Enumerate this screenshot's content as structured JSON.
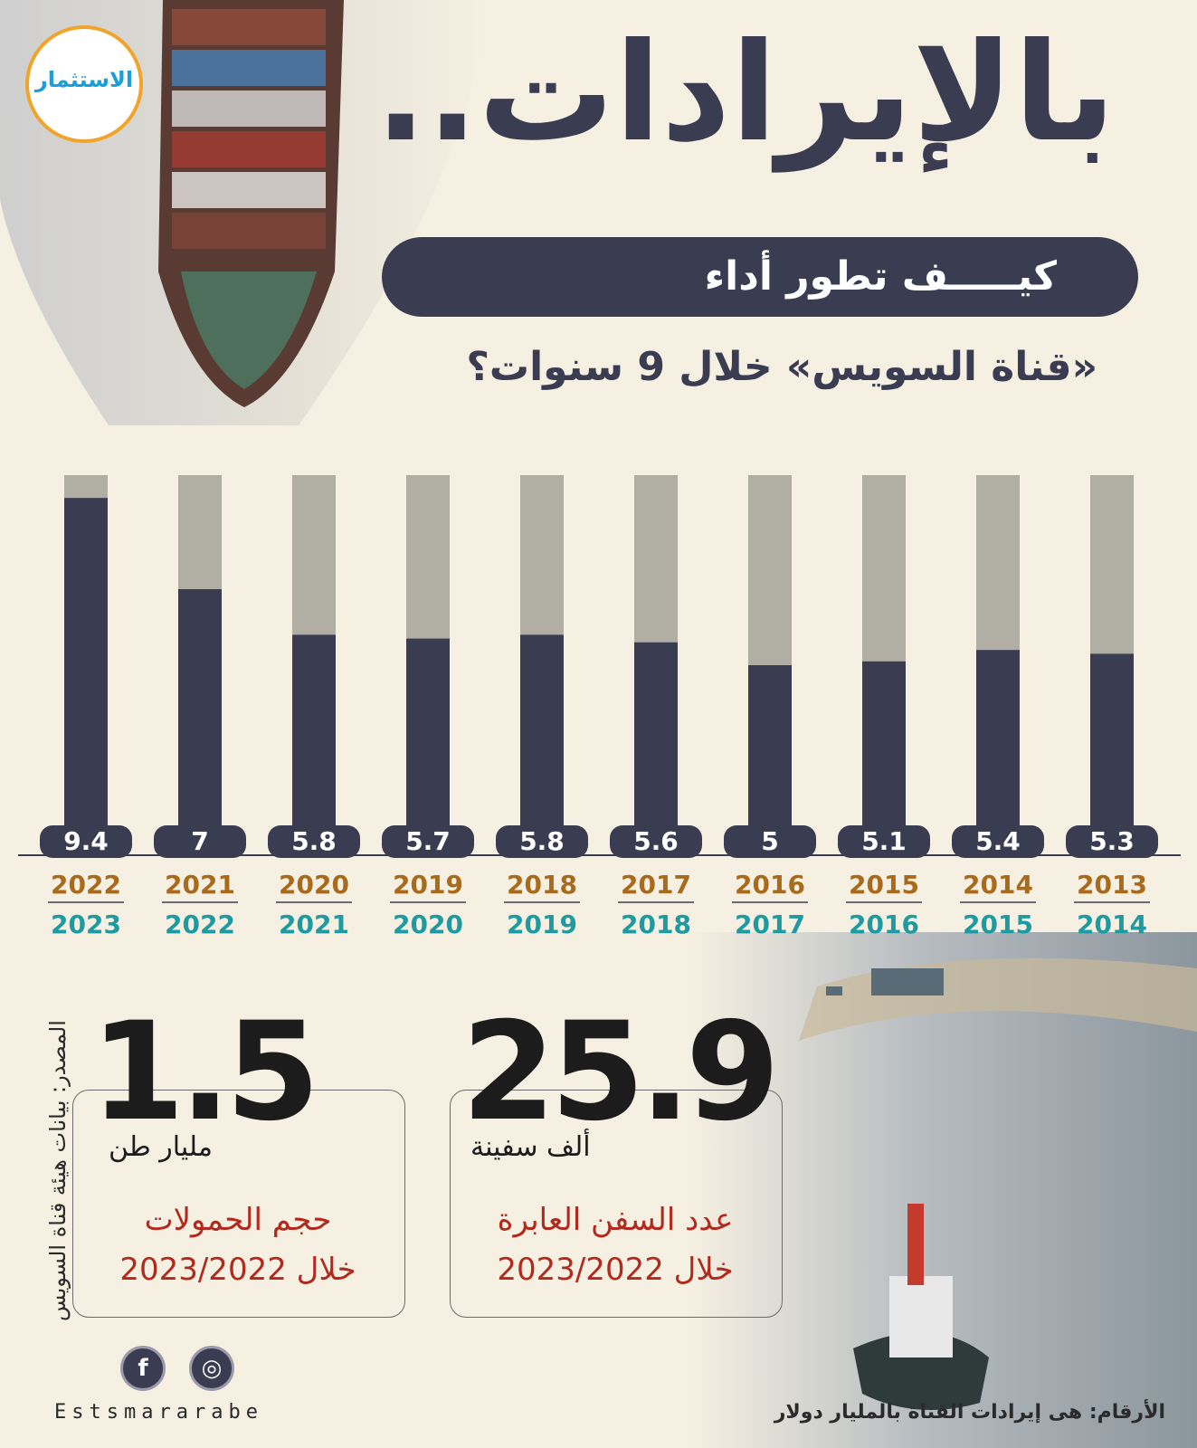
{
  "header": {
    "logo_text": "الاستثمار",
    "headline": "بالإيرادات..",
    "subheadline": "كيـــــف تطور أداء",
    "subtitle": "«قناة السويس» خلال 9 سنوات؟"
  },
  "colors": {
    "background": "#f6f0e2",
    "bar_fill": "#3a3d52",
    "bar_track": "#b1aea3",
    "year_from": "#a86a1c",
    "year_to": "#1f9aa0",
    "stat_label": "#b02a1e"
  },
  "chart_data": {
    "type": "bar",
    "categories": [
      "2013/2014",
      "2014/2015",
      "2015/2016",
      "2016/2017",
      "2017/2018",
      "2018/2019",
      "2019/2020",
      "2020/2021",
      "2021/2022",
      "2022/2023"
    ],
    "year_from": [
      "2013",
      "2014",
      "2015",
      "2016",
      "2017",
      "2018",
      "2019",
      "2020",
      "2021",
      "2022"
    ],
    "year_to": [
      "2014",
      "2015",
      "2016",
      "2017",
      "2018",
      "2019",
      "2020",
      "2021",
      "2022",
      "2023"
    ],
    "values": [
      5.3,
      5.4,
      5.1,
      5,
      5.6,
      5.8,
      5.7,
      5.8,
      7,
      9.4
    ],
    "value_labels": [
      "5.3",
      "5.4",
      "5.1",
      "5",
      "5.6",
      "5.8",
      "5.7",
      "5.8",
      "7",
      "9.4"
    ],
    "ylim": [
      0,
      10
    ],
    "order": "right-to-left",
    "grid": false,
    "legend": "none"
  },
  "stats": [
    {
      "number": "25.9",
      "unit": "ألف سفينة",
      "label_line1": "عدد السفن العابرة",
      "label_line2": "خلال 2023/2022"
    },
    {
      "number": "1.5",
      "unit": "مليار طن",
      "label_line1": "حجم الحمولات",
      "label_line2": "خلال 2023/2022"
    }
  ],
  "footer": {
    "source": "المصدر: بيانات هيئة قناة السويس",
    "brand": "Estsmararabe",
    "note": "الأرقام: هى إيرادات القناة بالمليار دولار",
    "social_facebook": "f",
    "social_dribbble": "◎"
  }
}
